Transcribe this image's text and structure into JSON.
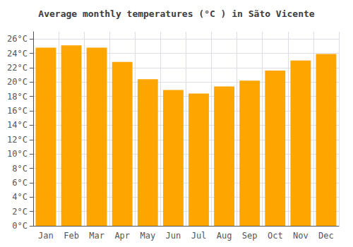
{
  "chart_data": {
    "type": "bar",
    "title": "Average monthly temperatures (°C ) in Sãto Vicente",
    "categories": [
      "Jan",
      "Feb",
      "Mar",
      "Apr",
      "May",
      "Jun",
      "Jul",
      "Aug",
      "Sep",
      "Oct",
      "Nov",
      "Dec"
    ],
    "values": [
      24.8,
      25.1,
      24.8,
      22.8,
      20.4,
      18.9,
      18.4,
      19.4,
      20.2,
      21.6,
      23.0,
      23.9
    ],
    "color": "#FFA500",
    "ylim": [
      0,
      27
    ],
    "yticks": [
      {
        "value": 0,
        "label": "0°C"
      },
      {
        "value": 2,
        "label": "2°C"
      },
      {
        "value": 4,
        "label": "4°C"
      },
      {
        "value": 6,
        "label": "6°C"
      },
      {
        "value": 8,
        "label": "8°C"
      },
      {
        "value": 10,
        "label": "10°C"
      },
      {
        "value": 12,
        "label": "12°C"
      },
      {
        "value": 14,
        "label": "14°C"
      },
      {
        "value": 16,
        "label": "16°C"
      },
      {
        "value": 18,
        "label": "18°C"
      },
      {
        "value": 20,
        "label": "20°C"
      },
      {
        "value": 22,
        "label": "22°C"
      },
      {
        "value": 24,
        "label": "24°C"
      },
      {
        "value": 26,
        "label": "26°C"
      }
    ],
    "grid": true
  }
}
